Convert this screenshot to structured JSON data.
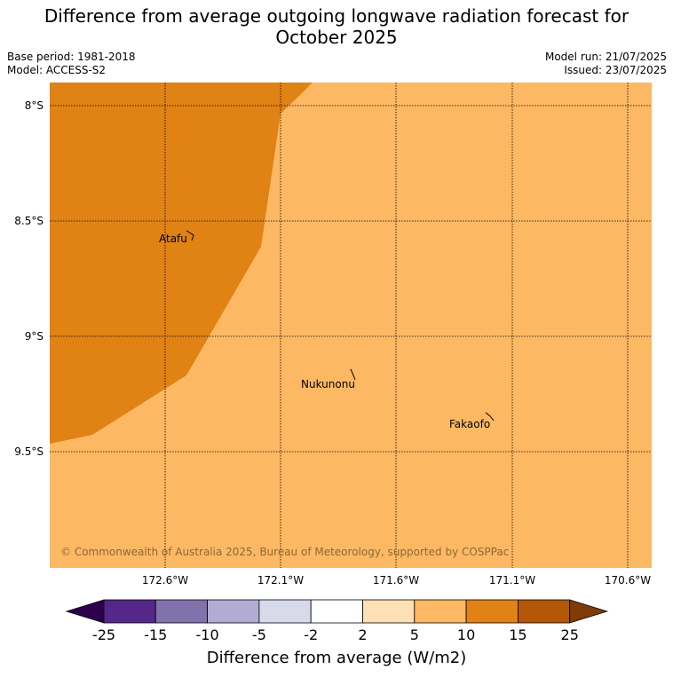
{
  "title_line1": "Difference from average outgoing longwave radiation forecast for",
  "title_line2": "October 2025",
  "base_period": "Base period: 1981-2018",
  "model": "Model: ACCESS-S2",
  "model_run": "Model run: 21/07/2025",
  "issued": "Issued: 23/07/2025",
  "lat_labels": [
    "8°S",
    "8.5°S",
    "9°S",
    "9.5°S"
  ],
  "lon_labels": [
    "172.6°W",
    "172.1°W",
    "171.6°W",
    "171.1°W",
    "170.6°W"
  ],
  "places": [
    "Atafu",
    "Nukunonu",
    "Fakaofo"
  ],
  "copyright": "© Commonwealth of Australia 2025, Bureau of Meteorology, supported by COSPPac",
  "colorbar": {
    "tick_labels": [
      "-25",
      "-15",
      "-10",
      "-5",
      "-2",
      "2",
      "5",
      "10",
      "15",
      "25"
    ],
    "colors": [
      "#2d004b",
      "#542788",
      "#8073ac",
      "#b2abd2",
      "#d8daeb",
      "#ffffff",
      "#fee0b6",
      "#fdb863",
      "#e08214",
      "#b35806",
      "#7f3b08"
    ],
    "label": "Difference from average (W/m2)"
  },
  "field_colors": {
    "category_5_10": "#fdb863",
    "category_10_15": "#e08214"
  }
}
